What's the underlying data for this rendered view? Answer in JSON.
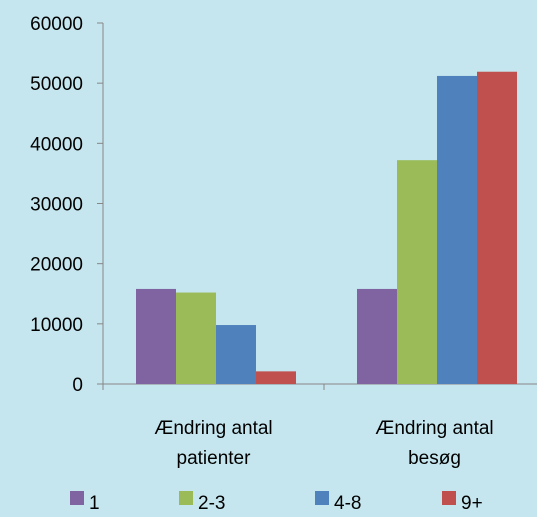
{
  "chart_data": {
    "type": "bar",
    "title": "",
    "xlabel": "",
    "ylabel": "",
    "ylim": [
      0,
      60000
    ],
    "yticks": [
      0,
      10000,
      20000,
      30000,
      40000,
      50000,
      60000
    ],
    "grid": false,
    "legend_position": "bottom",
    "categories": [
      [
        "Ændring antal",
        "patienter"
      ],
      [
        "Ændring antal",
        "besøg"
      ]
    ],
    "series": [
      {
        "name": "1",
        "color": "#8064a2",
        "values": [
          15800,
          15800
        ]
      },
      {
        "name": "2-3",
        "color": "#9bbb59",
        "values": [
          15200,
          37200
        ]
      },
      {
        "name": "4-8",
        "color": "#4f81bd",
        "values": [
          9800,
          51200
        ]
      },
      {
        "name": "9+",
        "color": "#c0504d",
        "values": [
          2100,
          51900
        ]
      }
    ]
  }
}
